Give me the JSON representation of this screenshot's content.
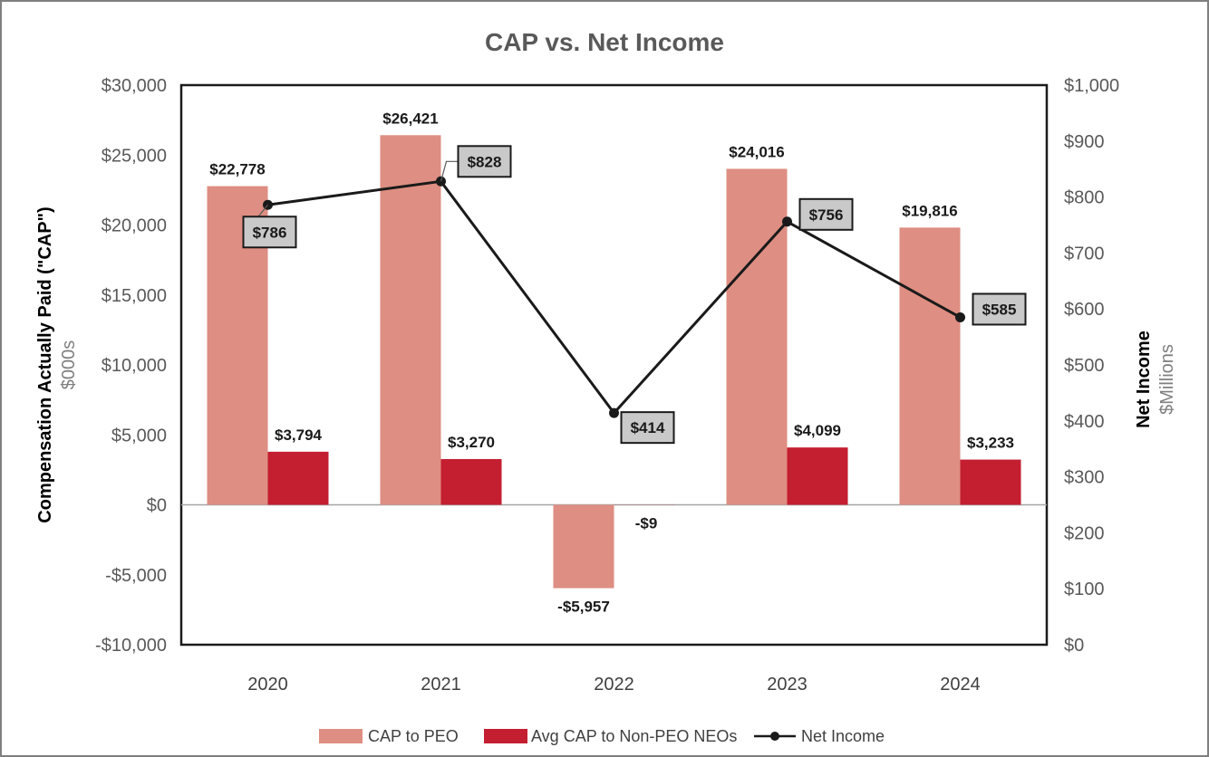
{
  "chart_data": {
    "type": "bar",
    "title": "CAP vs. Net Income",
    "categories": [
      "2020",
      "2021",
      "2022",
      "2023",
      "2024"
    ],
    "y_left": {
      "title": "Compensation Actually Paid (\"CAP\")",
      "subtitle": "$000s",
      "ylim": [
        -10000,
        30000
      ],
      "ticks": [
        -10000,
        -5000,
        0,
        5000,
        10000,
        15000,
        20000,
        25000,
        30000
      ],
      "tick_labels": [
        "-$10,000",
        "-$5,000",
        "$0",
        "$5,000",
        "$10,000",
        "$15,000",
        "$20,000",
        "$25,000",
        "$30,000"
      ]
    },
    "y_right": {
      "title": "Net Income",
      "subtitle": "$Millions",
      "ylim": [
        0,
        1000
      ],
      "ticks": [
        0,
        100,
        200,
        300,
        400,
        500,
        600,
        700,
        800,
        900,
        1000
      ],
      "tick_labels": [
        "$0",
        "$100",
        "$200",
        "$300",
        "$400",
        "$500",
        "$600",
        "$700",
        "$800",
        "$900",
        "$1,000"
      ]
    },
    "series": [
      {
        "name": "CAP to PEO",
        "type": "bar",
        "axis": "left",
        "color": "#de8e82",
        "values": [
          22778,
          26421,
          -5957,
          24016,
          19816
        ],
        "labels": [
          "$22,778",
          "$26,421",
          "-$5,957",
          "$24,016",
          "$19,816"
        ]
      },
      {
        "name": "Avg CAP to Non-PEO NEOs",
        "type": "bar",
        "axis": "left",
        "color": "#c41e31",
        "values": [
          3794,
          3270,
          -9,
          4099,
          3233
        ],
        "labels": [
          "$3,794",
          "$3,270",
          "-$9",
          "$4,099",
          "$3,233"
        ]
      },
      {
        "name": "Net Income",
        "type": "line",
        "axis": "right",
        "color": "#1a1a1a",
        "values": [
          786,
          828,
          414,
          756,
          585
        ],
        "labels": [
          "$786",
          "$828",
          "$414",
          "$756",
          "$585"
        ]
      }
    ],
    "legend_position": "bottom",
    "grid": false
  }
}
